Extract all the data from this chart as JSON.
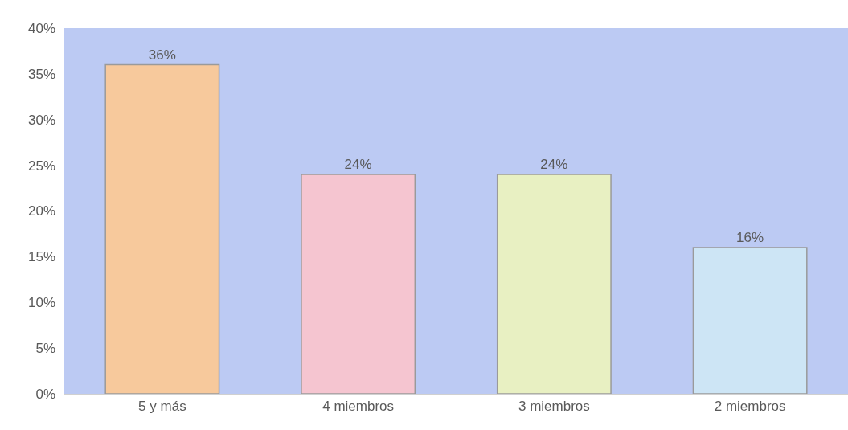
{
  "chart_data": {
    "type": "bar",
    "categories": [
      "5 y más",
      "4 miembros",
      "3 miembros",
      "2 miembros"
    ],
    "values": [
      36,
      24,
      24,
      16
    ],
    "value_labels": [
      "36%",
      "24%",
      "24%",
      "16%"
    ],
    "colors": [
      "#f7c99c",
      "#f5c5d0",
      "#e8f0c2",
      "#cde5f5"
    ],
    "ylim": [
      0,
      40
    ],
    "yticks": [
      {
        "value": 0,
        "label": "0%"
      },
      {
        "value": 5,
        "label": "5%"
      },
      {
        "value": 10,
        "label": "10%"
      },
      {
        "value": 15,
        "label": "15%"
      },
      {
        "value": 20,
        "label": "20%"
      },
      {
        "value": 25,
        "label": "25%"
      },
      {
        "value": 30,
        "label": "30%"
      },
      {
        "value": 35,
        "label": "35%"
      },
      {
        "value": 40,
        "label": "40%"
      }
    ],
    "grid": false
  }
}
